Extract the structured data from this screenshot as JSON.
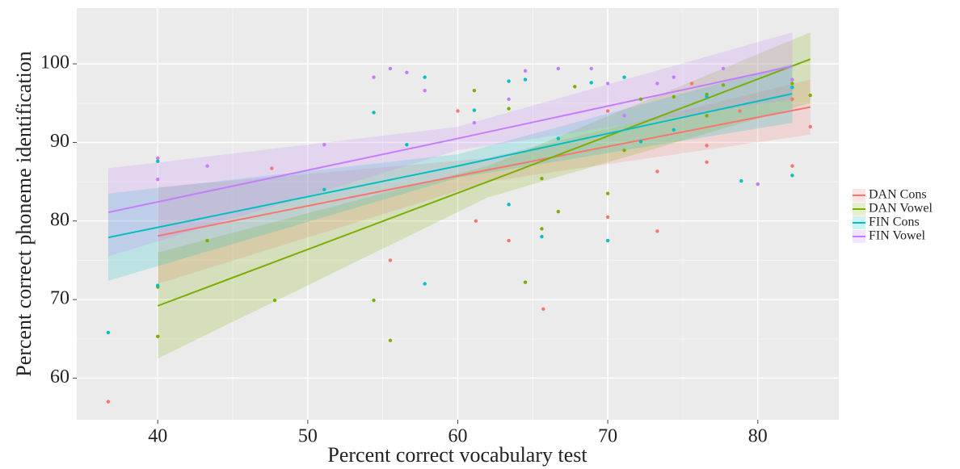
{
  "chart_data": {
    "type": "scatter",
    "x_label": "Percent correct vocabulary test",
    "y_label": "Percent correct phoneme identification",
    "xlim": [
      34.6,
      85.4
    ],
    "ylim": [
      54.7,
      107.1
    ],
    "xticks": [
      40,
      50,
      60,
      70,
      80
    ],
    "yticks": [
      60,
      70,
      80,
      90,
      100
    ],
    "grid": true,
    "legend": "right",
    "series": [
      {
        "name": "DAN Cons",
        "color": "#F8766D",
        "x": [
          36.7,
          40,
          47.6,
          55.5,
          60,
          61.2,
          63.4,
          65.7,
          70,
          70,
          73.3,
          73.3,
          75.6,
          76.6,
          76.6,
          78.8,
          80,
          82.3,
          82.3,
          83.5
        ],
        "values": [
          57,
          88,
          86.7,
          75,
          94,
          80,
          77.5,
          68.8,
          80.5,
          94,
          78.7,
          86.3,
          97.5,
          87.5,
          89.6,
          94,
          84.7,
          87,
          95.5,
          92
        ],
        "fit": {
          "x": [
            40,
            62,
            83.5
          ],
          "y": [
            78.1,
            86.5,
            94.5
          ],
          "lower": [
            72,
            85,
            91
          ],
          "upper": [
            84.3,
            88,
            98
          ]
        }
      },
      {
        "name": "DAN Vowel",
        "color": "#7CAE00",
        "x": [
          40,
          40,
          43.3,
          47.8,
          54.4,
          55.5,
          61.1,
          63.4,
          64.5,
          65.6,
          65.6,
          66.7,
          67.8,
          70,
          71.1,
          72.2,
          74.4,
          76.6,
          76.6,
          77.7,
          82.3,
          83.5
        ],
        "values": [
          65.3,
          71.6,
          77.5,
          69.9,
          69.9,
          64.8,
          96.6,
          94.3,
          72.2,
          85.4,
          79,
          81.2,
          97.1,
          83.5,
          89,
          95.5,
          95.8,
          93.4,
          96.1,
          97.3,
          97.5,
          96
        ],
        "fit": {
          "x": [
            40,
            62,
            83.5
          ],
          "y": [
            69.2,
            85,
            100.6
          ],
          "lower": [
            62.5,
            83,
            95
          ],
          "upper": [
            76,
            87,
            104
          ]
        }
      },
      {
        "name": "FIN Cons",
        "color": "#00BFC4",
        "x": [
          36.7,
          40,
          40,
          51.1,
          54.4,
          56.6,
          57.8,
          57.8,
          61.1,
          63.4,
          63.4,
          64.5,
          65.6,
          66.7,
          68.9,
          70,
          71.1,
          72.2,
          74.4,
          76.6,
          78.9,
          82.3,
          82.3
        ],
        "values": [
          65.8,
          87.6,
          71.8,
          84,
          93.8,
          89.7,
          98.3,
          72,
          94.1,
          82.1,
          97.8,
          98,
          78,
          90.5,
          97.6,
          77.5,
          98.3,
          90.1,
          91.6,
          95.8,
          85.1,
          85.8,
          97
        ],
        "fit": {
          "x": [
            36.7,
            60,
            82.3
          ],
          "y": [
            77.9,
            87,
            96.2
          ],
          "lower": [
            72.4,
            85.5,
            92.5
          ],
          "upper": [
            83.5,
            88.5,
            100
          ]
        }
      },
      {
        "name": "FIN Vowel",
        "color": "#C77CFF",
        "x": [
          40,
          40,
          43.3,
          51.1,
          54.4,
          55.5,
          56.6,
          57.8,
          61.1,
          63.4,
          64.5,
          66.7,
          68.9,
          70,
          71.1,
          73.3,
          74.4,
          77.7,
          80,
          82.3
        ],
        "values": [
          88,
          85.3,
          87,
          89.7,
          98.3,
          99.4,
          98.9,
          96.6,
          92.5,
          95.5,
          99.1,
          99.4,
          99.4,
          97.5,
          93.4,
          97.5,
          98.3,
          99.4,
          84.7,
          98
        ],
        "fit": {
          "x": [
            36.7,
            60,
            82.3
          ],
          "y": [
            81.1,
            90.5,
            99.7
          ],
          "lower": [
            75.5,
            89,
            95.5
          ],
          "upper": [
            86.7,
            92,
            104
          ]
        }
      }
    ]
  }
}
